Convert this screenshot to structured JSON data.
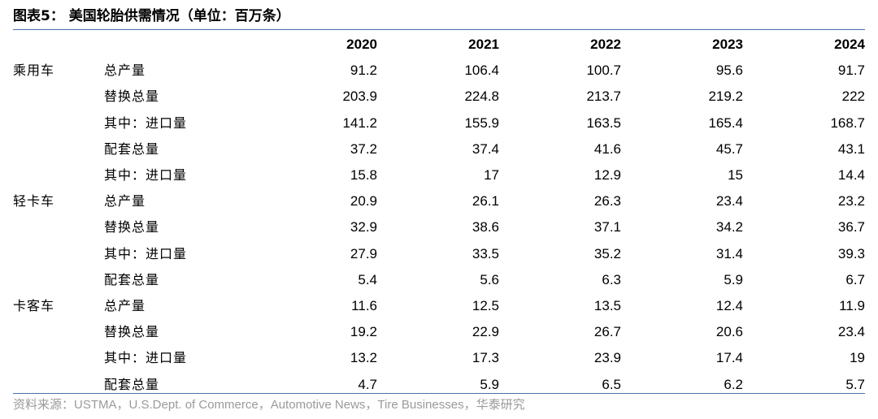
{
  "title": "图表5：  美国轮胎供需情况（单位：百万条）",
  "years": [
    "2020",
    "2021",
    "2022",
    "2023",
    "2024"
  ],
  "rows": [
    {
      "category": "乘用车",
      "item": "总产量",
      "values": [
        "91.2",
        "106.4",
        "100.7",
        "95.6",
        "91.7"
      ]
    },
    {
      "category": "",
      "item": "替换总量",
      "values": [
        "203.9",
        "224.8",
        "213.7",
        "219.2",
        "222"
      ]
    },
    {
      "category": "",
      "item": "其中：进口量",
      "values": [
        "141.2",
        "155.9",
        "163.5",
        "165.4",
        "168.7"
      ]
    },
    {
      "category": "",
      "item": "配套总量",
      "values": [
        "37.2",
        "37.4",
        "41.6",
        "45.7",
        "43.1"
      ]
    },
    {
      "category": "",
      "item": "其中：进口量",
      "values": [
        "15.8",
        "17",
        "12.9",
        "15",
        "14.4"
      ]
    },
    {
      "category": "轻卡车",
      "item": "总产量",
      "values": [
        "20.9",
        "26.1",
        "26.3",
        "23.4",
        "23.2"
      ]
    },
    {
      "category": "",
      "item": "替换总量",
      "values": [
        "32.9",
        "38.6",
        "37.1",
        "34.2",
        "36.7"
      ]
    },
    {
      "category": "",
      "item": "其中：进口量",
      "values": [
        "27.9",
        "33.5",
        "35.2",
        "31.4",
        "39.3"
      ]
    },
    {
      "category": "",
      "item": "配套总量",
      "values": [
        "5.4",
        "5.6",
        "6.3",
        "5.9",
        "6.7"
      ]
    },
    {
      "category": "卡客车",
      "item": "总产量",
      "values": [
        "11.6",
        "12.5",
        "13.5",
        "12.4",
        "11.9"
      ]
    },
    {
      "category": "",
      "item": "替换总量",
      "values": [
        "19.2",
        "22.9",
        "26.7",
        "20.6",
        "23.4"
      ]
    },
    {
      "category": "",
      "item": "其中：进口量",
      "values": [
        "13.2",
        "17.3",
        "23.9",
        "17.4",
        "19"
      ]
    },
    {
      "category": "",
      "item": "配套总量",
      "values": [
        "4.7",
        "5.9",
        "6.5",
        "6.2",
        "5.7"
      ]
    }
  ],
  "source": "资料来源：USTMA，U.S.Dept. of Commerce，Automotive News，Tire Businesses，华泰研究",
  "colors": {
    "rule": "#4a6fa5",
    "source_text": "#9a9a9a"
  }
}
